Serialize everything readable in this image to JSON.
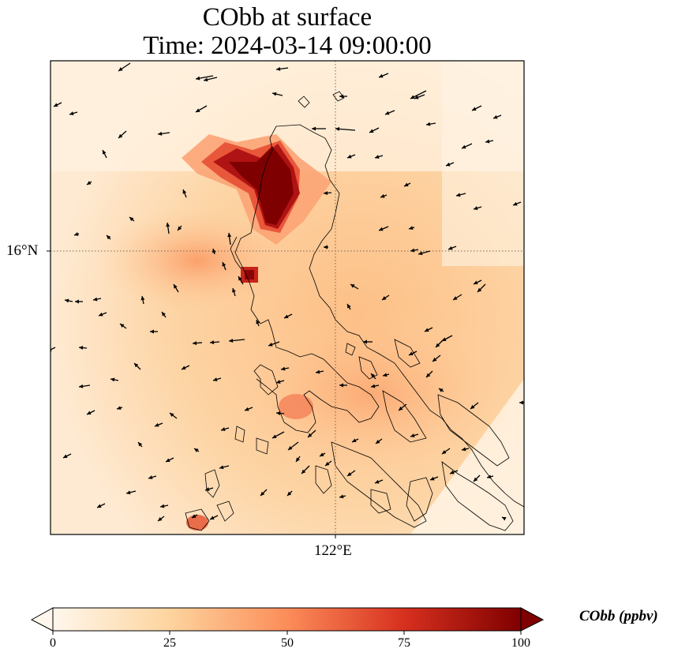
{
  "title": {
    "line1": "CObb at surface",
    "line2": "Time: 2024-03-14 09:00:00"
  },
  "map": {
    "variable": "CObb",
    "level": "surface",
    "gridlines": {
      "latitude_label": "16°N",
      "longitude_label": "122°E"
    },
    "features": [
      "coastlines",
      "wind-vectors",
      "concentration-field"
    ]
  },
  "colorbar": {
    "label": "CObb (ppbv)",
    "ticks": [
      "0",
      "25",
      "50",
      "75",
      "100"
    ],
    "colormap": "OrRd",
    "extend": "both",
    "colors": [
      "#fff7ec",
      "#fdd49e",
      "#fc8d59",
      "#d7301f",
      "#7f0000"
    ]
  }
}
